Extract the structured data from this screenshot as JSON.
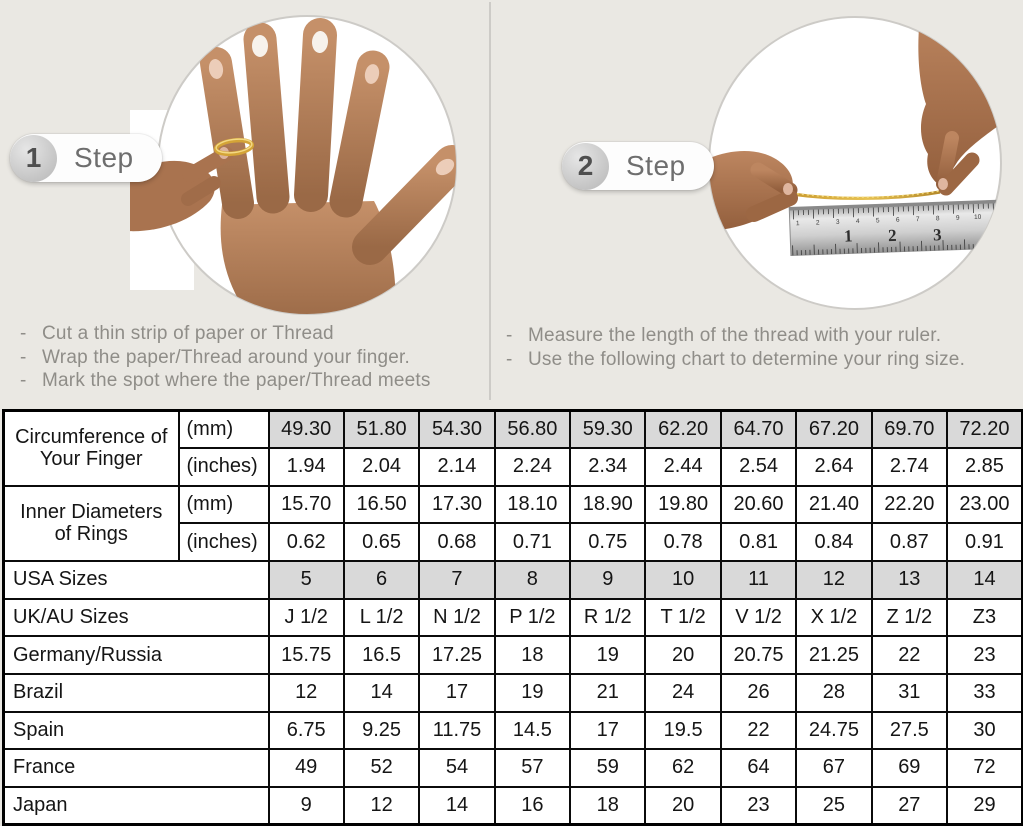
{
  "colors": {
    "background": "#eae8e3",
    "shaded_cell": "#d9d9d9",
    "table_border": "#000000",
    "gold_ring": "#d4a437",
    "instruction_text": "#8f8d88"
  },
  "bullet": "-",
  "steps": [
    {
      "number": "1",
      "label": "Step",
      "instructions": [
        "Cut a thin strip of paper or Thread",
        "Wrap the paper/Thread around your finger.",
        "Mark the spot where the paper/Thread meets"
      ]
    },
    {
      "number": "2",
      "label": "Step",
      "instructions": [
        "Measure the length of the thread with your ruler.",
        "Use the following chart to determine your ring size."
      ]
    }
  ],
  "ruler": {
    "inch_numbers": [
      "1",
      "2",
      "3"
    ],
    "cm_numbers": [
      "1",
      "2",
      "3",
      "4",
      "5",
      "6",
      "7",
      "8",
      "9",
      "10"
    ]
  },
  "size_chart": {
    "groups": [
      {
        "label": "Circumference of Your Finger",
        "rows": [
          {
            "unit": "(mm)",
            "shaded": true,
            "values": [
              "49.30",
              "51.80",
              "54.30",
              "56.80",
              "59.30",
              "62.20",
              "64.70",
              "67.20",
              "69.70",
              "72.20"
            ]
          },
          {
            "unit": "(inches)",
            "shaded": false,
            "values": [
              "1.94",
              "2.04",
              "2.14",
              "2.24",
              "2.34",
              "2.44",
              "2.54",
              "2.64",
              "2.74",
              "2.85"
            ]
          }
        ]
      },
      {
        "label": "Inner Diameters of Rings",
        "rows": [
          {
            "unit": "(mm)",
            "shaded": false,
            "values": [
              "15.70",
              "16.50",
              "17.30",
              "18.10",
              "18.90",
              "19.80",
              "20.60",
              "21.40",
              "22.20",
              "23.00"
            ]
          },
          {
            "unit": "(inches)",
            "shaded": false,
            "values": [
              "0.62",
              "0.65",
              "0.68",
              "0.71",
              "0.75",
              "0.78",
              "0.81",
              "0.84",
              "0.87",
              "0.91"
            ]
          }
        ]
      }
    ],
    "simple_rows": [
      {
        "label": "USA Sizes",
        "shaded": true,
        "values": [
          "5",
          "6",
          "7",
          "8",
          "9",
          "10",
          "11",
          "12",
          "13",
          "14"
        ]
      },
      {
        "label": "UK/AU Sizes",
        "shaded": false,
        "values": [
          "J 1/2",
          "L 1/2",
          "N 1/2",
          "P 1/2",
          "R 1/2",
          "T 1/2",
          "V 1/2",
          "X 1/2",
          "Z 1/2",
          "Z3"
        ]
      },
      {
        "label": "Germany/Russia",
        "shaded": false,
        "values": [
          "15.75",
          "16.5",
          "17.25",
          "18",
          "19",
          "20",
          "20.75",
          "21.25",
          "22",
          "23"
        ]
      },
      {
        "label": "Brazil",
        "shaded": false,
        "values": [
          "12",
          "14",
          "17",
          "19",
          "21",
          "24",
          "26",
          "28",
          "31",
          "33"
        ]
      },
      {
        "label": "Spain",
        "shaded": false,
        "values": [
          "6.75",
          "9.25",
          "11.75",
          "14.5",
          "17",
          "19.5",
          "22",
          "24.75",
          "27.5",
          "30"
        ]
      },
      {
        "label": "France",
        "shaded": false,
        "values": [
          "49",
          "52",
          "54",
          "57",
          "59",
          "62",
          "64",
          "67",
          "69",
          "72"
        ]
      },
      {
        "label": "Japan",
        "shaded": false,
        "values": [
          "9",
          "12",
          "14",
          "16",
          "18",
          "20",
          "23",
          "25",
          "27",
          "29"
        ]
      }
    ]
  }
}
